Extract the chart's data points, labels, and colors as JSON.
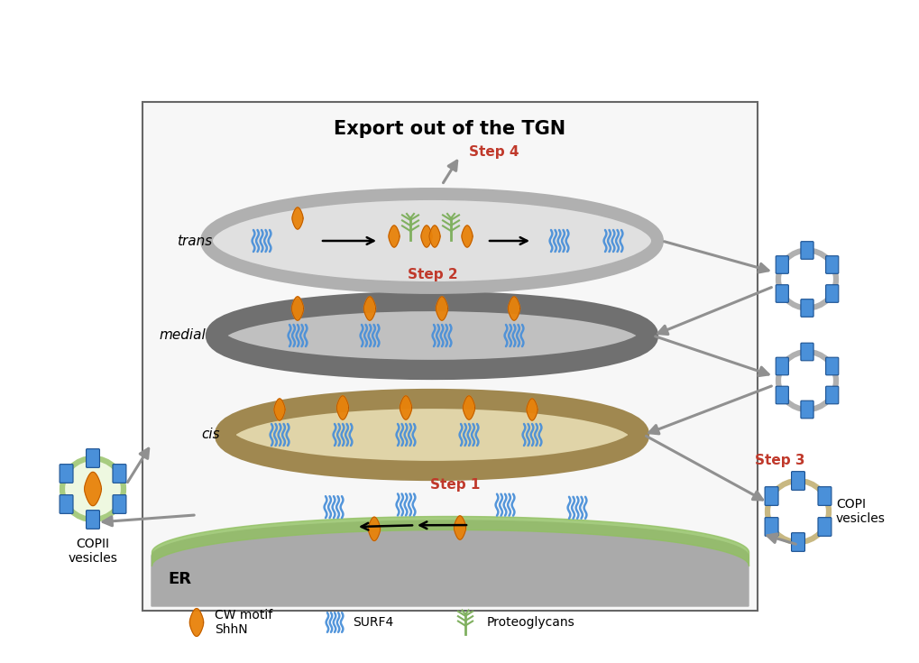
{
  "title": "Export out of the TGN",
  "title_fontsize": 15,
  "title_fontweight": "bold",
  "bg_color": "#ffffff",
  "box_bg": "#f8f8f8",
  "box_edge": "#555555",
  "er_fill": "#aaaaaa",
  "green_membrane": "#90c060",
  "trans_fill": "#e0e0e0",
  "trans_edge": "#b0b0b0",
  "medial_fill": "#c0c0c0",
  "medial_edge": "#707070",
  "cis_fill": "#e0d4a8",
  "cis_edge": "#a08850",
  "surf4_color": "#4a90d9",
  "shhN_color": "#e8820a",
  "proteoglycan_color": "#80b060",
  "step_color": "#c0392b",
  "arrow_gray": "#909090",
  "arrow_black": "#222222",
  "trans_label": "trans",
  "medial_label": "medial",
  "cis_label": "cis",
  "er_label": "ER",
  "step1_label": "Step 1",
  "step2_label": "Step 2",
  "step3_label": "Step 3",
  "step4_label": "Step 4",
  "copii_label": "COPII\nvesicles",
  "copi_label": "COPI\nvesicles",
  "legend_cw": "CW motif\nShhN",
  "legend_surf4": "SURF4",
  "legend_pg": "Proteoglycans",
  "copii_ring": "#a8cc80",
  "copi_ring": "#c8b882",
  "vesicle_gray_ring": "#b0b0b0"
}
